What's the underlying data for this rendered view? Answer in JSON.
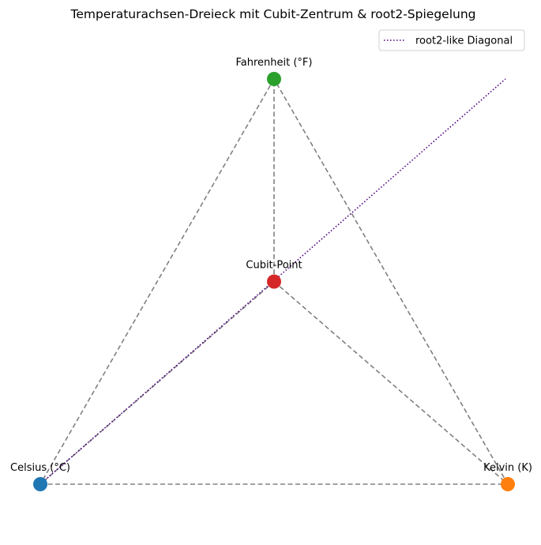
{
  "chart_data": {
    "type": "scatter",
    "title": "Temperaturachsen-Dreieck mit Cubit-Zentrum & root2-Spiegelung",
    "points": [
      {
        "name": "Celsius (°C)",
        "x": 0,
        "y": 0,
        "color": "#1f77b4"
      },
      {
        "name": "Kelvin (K)",
        "x": 1,
        "y": 0,
        "color": "#ff7f0e"
      },
      {
        "name": "Fahrenheit (°F)",
        "x": 0.5,
        "y": 0.866,
        "color": "#2ca02c"
      },
      {
        "name": "Cubit-Point",
        "x": 0.5,
        "y": 0.433,
        "color": "#d62728"
      }
    ],
    "triangle_edges": [
      [
        "Celsius (°C)",
        "Kelvin (K)"
      ],
      [
        "Kelvin (K)",
        "Fahrenheit (°F)"
      ],
      [
        "Fahrenheit (°F)",
        "Celsius (°C)"
      ]
    ],
    "center_spokes": [
      [
        "Cubit-Point",
        "Celsius (°C)"
      ],
      [
        "Cubit-Point",
        "Kelvin (K)"
      ],
      [
        "Cubit-Point",
        "Fahrenheit (°F)"
      ]
    ],
    "edge_color": "#808080",
    "diagonal": {
      "name": "root2-like Diagonal",
      "x": [
        0,
        1
      ],
      "y": [
        0,
        0.866
      ],
      "color": "#4b0082",
      "style": "dotted"
    },
    "legend": {
      "placement": "top-right",
      "entries": [
        "root2-like Diagonal"
      ]
    },
    "axes_visible": false
  }
}
